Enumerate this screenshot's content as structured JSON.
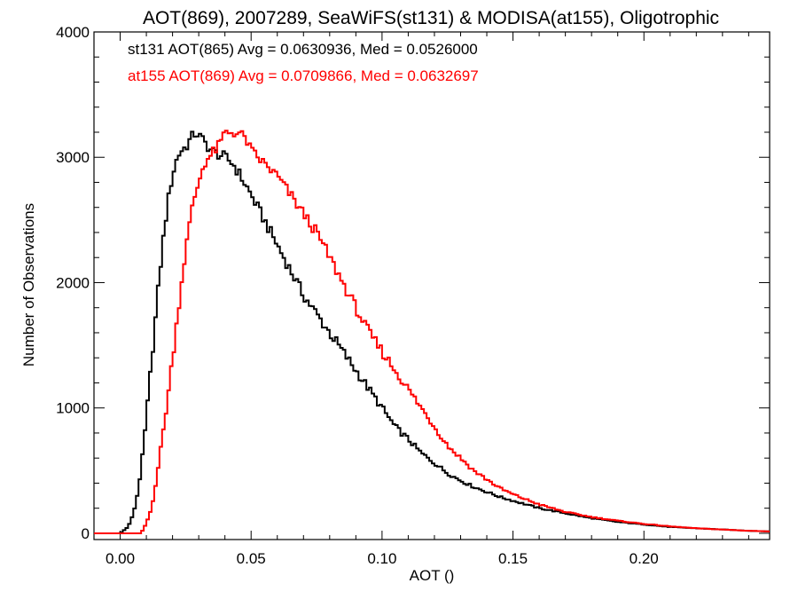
{
  "chart_data": {
    "type": "line",
    "title": "AOT(869), 2007289, SeaWiFS(st131) & MODISA(at155), Oligotrophic",
    "xlabel": "AOT ()",
    "ylabel": "Number of Observations",
    "xlim": [
      -0.01,
      0.248
    ],
    "ylim": [
      -50,
      4000
    ],
    "x_ticks": [
      0.0,
      0.05,
      0.1,
      0.15,
      0.2
    ],
    "x_tick_labels": [
      "0.00",
      "0.05",
      "0.10",
      "0.15",
      "0.20"
    ],
    "y_ticks": [
      0,
      1000,
      2000,
      3000,
      4000
    ],
    "y_tick_labels": [
      "0",
      "1000",
      "2000",
      "3000",
      "4000"
    ],
    "grid": false,
    "legend_placement": "top-left",
    "series": [
      {
        "name": "st131 AOT(865) Avg = 0.0630936, Med = 0.0526000",
        "color": "#000000",
        "x": [
          -0.01,
          0.0,
          0.003,
          0.005,
          0.007,
          0.009,
          0.011,
          0.013,
          0.015,
          0.017,
          0.019,
          0.021,
          0.023,
          0.025,
          0.027,
          0.029,
          0.031,
          0.033,
          0.035,
          0.037,
          0.04,
          0.043,
          0.046,
          0.05,
          0.055,
          0.06,
          0.065,
          0.07,
          0.075,
          0.08,
          0.085,
          0.09,
          0.095,
          0.1,
          0.105,
          0.11,
          0.115,
          0.12,
          0.125,
          0.13,
          0.135,
          0.14,
          0.145,
          0.15,
          0.155,
          0.16,
          0.17,
          0.18,
          0.19,
          0.2,
          0.21,
          0.22,
          0.23,
          0.24,
          0.248
        ],
        "y": [
          0,
          0,
          50,
          150,
          350,
          700,
          1150,
          1600,
          2050,
          2450,
          2750,
          2950,
          3050,
          3080,
          3150,
          3200,
          3150,
          3100,
          3050,
          3030,
          3000,
          2950,
          2850,
          2700,
          2500,
          2300,
          2100,
          1900,
          1750,
          1600,
          1450,
          1300,
          1150,
          1000,
          850,
          750,
          640,
          560,
          480,
          420,
          370,
          330,
          290,
          260,
          230,
          200,
          160,
          120,
          90,
          70,
          50,
          40,
          30,
          20,
          15
        ]
      },
      {
        "name": "at155 AOT(869) Avg = 0.0709866, Med = 0.0632697",
        "color": "#ff0000",
        "x": [
          -0.01,
          0.008,
          0.01,
          0.012,
          0.014,
          0.016,
          0.018,
          0.02,
          0.022,
          0.024,
          0.026,
          0.028,
          0.03,
          0.032,
          0.034,
          0.036,
          0.038,
          0.04,
          0.042,
          0.044,
          0.046,
          0.048,
          0.05,
          0.055,
          0.06,
          0.065,
          0.07,
          0.075,
          0.08,
          0.085,
          0.09,
          0.095,
          0.1,
          0.105,
          0.11,
          0.115,
          0.12,
          0.125,
          0.13,
          0.135,
          0.14,
          0.145,
          0.15,
          0.155,
          0.16,
          0.17,
          0.18,
          0.19,
          0.2,
          0.21,
          0.22,
          0.23,
          0.24,
          0.248
        ],
        "y": [
          0,
          0,
          80,
          200,
          450,
          750,
          1050,
          1400,
          1750,
          2100,
          2400,
          2650,
          2800,
          2950,
          3000,
          3050,
          3100,
          3200,
          3200,
          3200,
          3180,
          3150,
          3050,
          2950,
          2850,
          2700,
          2550,
          2400,
          2200,
          2000,
          1800,
          1600,
          1450,
          1300,
          1150,
          1000,
          850,
          700,
          600,
          500,
          430,
          360,
          310,
          270,
          230,
          170,
          130,
          100,
          75,
          55,
          40,
          30,
          20,
          15
        ]
      }
    ]
  }
}
